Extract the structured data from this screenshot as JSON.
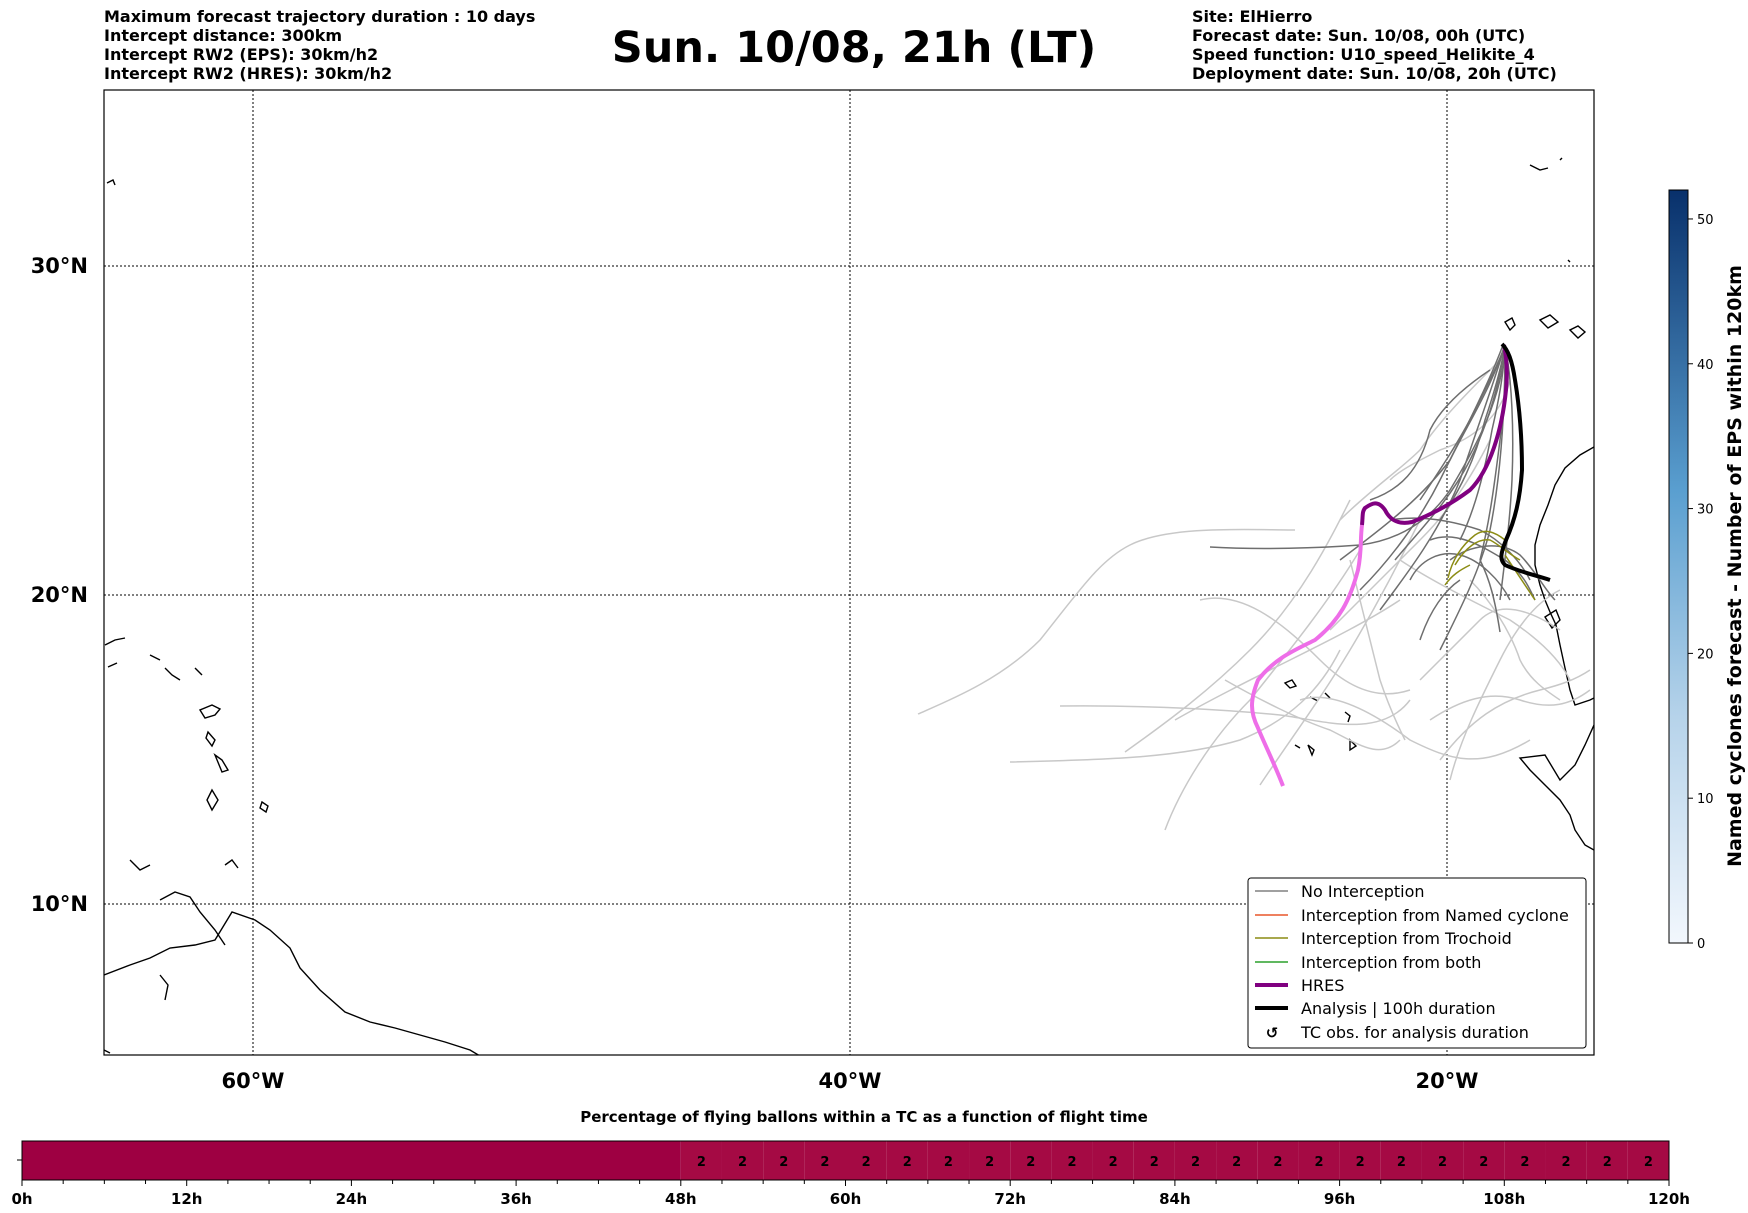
{
  "header_left": [
    "Maximum forecast trajectory duration : 10 days",
    "Intercept distance: 300km",
    "Intercept RW2 (EPS):  30km/h2",
    "Intercept RW2 (HRES): 30km/h2"
  ],
  "title": "Sun. 10/08, 21h (LT)",
  "header_right": [
    "Site: ElHierro",
    "Forecast date: Sun. 10/08, 00h (UTC)",
    "Speed function: U10_speed_Helikite_4",
    "Deployment date: Sun. 10/08, 20h (UTC)"
  ],
  "map": {
    "lon_labels": [
      "60°W",
      "40°W",
      "20°W"
    ],
    "lat_labels": [
      "30°N",
      "20°N",
      "10°N"
    ],
    "lon_ticks": [
      -60,
      -40,
      -20
    ],
    "lat_ticks": [
      30,
      20,
      10
    ],
    "lon_range": [
      -65,
      -15
    ],
    "lat_range": [
      5.3,
      34.6
    ]
  },
  "legend": {
    "items": [
      {
        "label": "No Interception",
        "color": "#808080",
        "kind": "line"
      },
      {
        "label": "Interception from Named cyclone",
        "color": "#e8562a",
        "kind": "line"
      },
      {
        "label": "Interception from Trochoid",
        "color": "#8c8c14",
        "kind": "line"
      },
      {
        "label": "Interception from both",
        "color": "#2ca02c",
        "kind": "line"
      },
      {
        "label": "HRES",
        "color": "#800080",
        "kind": "thick"
      },
      {
        "label": "Analysis | 100h duration",
        "color": "#000000",
        "kind": "thick"
      },
      {
        "label": "TC obs. for analysis duration",
        "color": "#000000",
        "kind": "marker"
      }
    ]
  },
  "colorbar": {
    "label": "Named cyclones forecast - Number of EPS within 120km",
    "ticks": [
      "0",
      "10",
      "20",
      "30",
      "40",
      "50"
    ],
    "range": [
      0,
      52
    ]
  },
  "bar": {
    "title": "Percentage of flying ballons within a TC as a function of flight time",
    "tick_labels": [
      "0h",
      "12h",
      "24h",
      "36h",
      "48h",
      "60h",
      "72h",
      "84h",
      "96h",
      "108h",
      "120h"
    ],
    "hours_range": [
      0,
      120
    ],
    "empty_until_hour": 48,
    "values": [
      "2",
      "2",
      "2",
      "2",
      "2",
      "2",
      "2",
      "2",
      "2",
      "2",
      "2",
      "2",
      "2",
      "2",
      "2",
      "2",
      "2",
      "2",
      "2",
      "2",
      "2",
      "2",
      "2",
      "2"
    ],
    "colors": {
      "empty": "#9e0042",
      "filled": "#a50a44"
    }
  },
  "chart_data": {
    "type": "map-trajectories",
    "series": [
      {
        "name": "HRES",
        "color": "#800080"
      },
      {
        "name": "Analysis | 100h duration",
        "color": "#000000"
      }
    ]
  }
}
